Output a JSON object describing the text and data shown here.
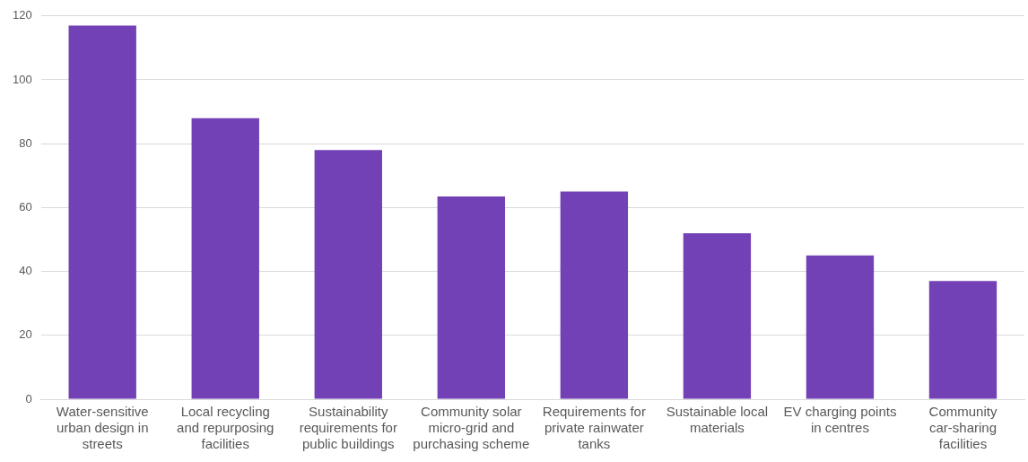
{
  "chart_data": {
    "type": "bar",
    "categories": [
      "Water-sensitive urban design in streets",
      "Local recycling and repurposing facilities",
      "Sustainability requirements for public buildings",
      "Community solar micro-grid and purchasing scheme",
      "Requirements for private rainwater tanks",
      "Sustainable local materials",
      "EV charging points in centres",
      "Community car-sharing facilities"
    ],
    "values": [
      117,
      88,
      78,
      63.5,
      65,
      52,
      45,
      37
    ],
    "color": "#7341b6",
    "ylim": [
      0,
      120
    ],
    "yticks": [
      0,
      20,
      40,
      60,
      80,
      100,
      120
    ],
    "grid": "y",
    "legend": false
  }
}
